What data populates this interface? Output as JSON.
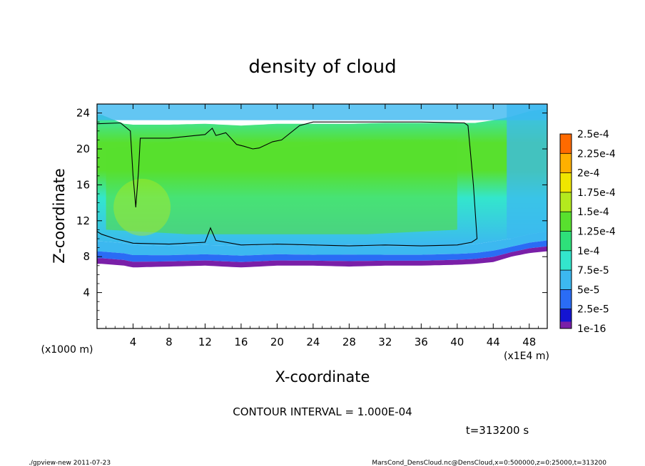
{
  "chart_data": {
    "type": "heatmap",
    "title": "density of cloud",
    "xlabel": "X-coordinate",
    "ylabel": "Z-coordinate",
    "x_unit": "(x1E4 m)",
    "y_unit": "(x1000 m)",
    "xlim": [
      0,
      50
    ],
    "ylim": [
      0,
      25
    ],
    "x_ticks": [
      4,
      8,
      12,
      16,
      20,
      24,
      28,
      32,
      36,
      40,
      44,
      48
    ],
    "y_ticks": [
      4,
      8,
      12,
      16,
      20,
      24
    ],
    "colorbar": {
      "labels": [
        "1e-16",
        "2.5e-5",
        "5e-5",
        "7.5e-5",
        "1e-4",
        "1.25e-4",
        "1.5e-4",
        "1.75e-4",
        "2e-4",
        "2.25e-4",
        "2.5e-4"
      ],
      "colors": [
        "#7a1fa8",
        "#1414d2",
        "#2a6cf5",
        "#3cb8f0",
        "#33e6cc",
        "#2ee07a",
        "#58e02e",
        "#b4ea1e",
        "#f0e600",
        "#ffb000",
        "#ff6a00",
        "#ff2a1a",
        "#ff8080"
      ]
    },
    "cloud_profile": {
      "columns": [
        {
          "x": 0.5,
          "bottom": 7.2,
          "core": 9.7,
          "top": 23.8
        },
        {
          "x": 3,
          "bottom": 7.0,
          "core": 9.5,
          "top": 22.8
        },
        {
          "x": 4,
          "bottom": 6.8,
          "core": 9.3,
          "top": 22.7
        },
        {
          "x": 8,
          "bottom": 6.9,
          "core": 9.2,
          "top": 22.7
        },
        {
          "x": 12,
          "bottom": 7.0,
          "core": 9.3,
          "top": 22.8
        },
        {
          "x": 16,
          "bottom": 6.8,
          "core": 9.2,
          "top": 22.6
        },
        {
          "x": 20,
          "bottom": 7.0,
          "core": 9.3,
          "top": 22.8
        },
        {
          "x": 24,
          "bottom": 7.0,
          "core": 9.2,
          "top": 22.8
        },
        {
          "x": 28,
          "bottom": 6.9,
          "core": 9.3,
          "top": 22.8
        },
        {
          "x": 32,
          "bottom": 7.0,
          "core": 9.2,
          "top": 22.9
        },
        {
          "x": 36,
          "bottom": 7.0,
          "core": 9.2,
          "top": 22.9
        },
        {
          "x": 40,
          "bottom": 7.1,
          "core": 9.3,
          "top": 22.9
        },
        {
          "x": 42,
          "bottom": 7.2,
          "core": 9.4,
          "top": 22.9
        },
        {
          "x": 44,
          "bottom": 7.4,
          "core": 9.7,
          "top": 23.2
        },
        {
          "x": 46,
          "bottom": 8.0,
          "core": 10.0,
          "top": 23.6
        },
        {
          "x": 48,
          "bottom": 8.4,
          "core": 10.5,
          "top": 24.2
        },
        {
          "x": 50,
          "bottom": 8.6,
          "core": 10.8,
          "top": 24.5
        }
      ],
      "contour_1e-4": [
        [
          0,
          22.8
        ],
        [
          2.6,
          22.9
        ],
        [
          3.7,
          22.0
        ],
        [
          4.0,
          17.0
        ],
        [
          4.3,
          13.5
        ],
        [
          4.6,
          17.5
        ],
        [
          4.8,
          21.2
        ],
        [
          8,
          21.2
        ],
        [
          12,
          21.6
        ],
        [
          12.8,
          22.3
        ],
        [
          13.2,
          21.5
        ],
        [
          14.3,
          21.8
        ],
        [
          15.5,
          20.5
        ],
        [
          16.3,
          20.3
        ],
        [
          17.3,
          20.0
        ],
        [
          18,
          20.1
        ],
        [
          19.5,
          20.8
        ],
        [
          20.5,
          21.0
        ],
        [
          22.5,
          22.6
        ],
        [
          24,
          23.0
        ],
        [
          30,
          23.0
        ],
        [
          36,
          23.0
        ],
        [
          40.8,
          22.9
        ],
        [
          41.2,
          22.6
        ],
        [
          41.8,
          16.0
        ],
        [
          42.2,
          10.0
        ],
        [
          41.6,
          9.6
        ],
        [
          40,
          9.3
        ],
        [
          36,
          9.2
        ],
        [
          32,
          9.3
        ],
        [
          28,
          9.2
        ],
        [
          24,
          9.3
        ],
        [
          20,
          9.4
        ],
        [
          16,
          9.3
        ],
        [
          13.2,
          9.8
        ],
        [
          12.6,
          11.2
        ],
        [
          12.0,
          9.6
        ],
        [
          8,
          9.4
        ],
        [
          4,
          9.5
        ],
        [
          2,
          10.0
        ],
        [
          0.5,
          10.5
        ],
        [
          0,
          10.8
        ]
      ]
    }
  },
  "contour_interval": "CONTOUR INTERVAL = 1.000E-04",
  "time_label": "t=313200 s",
  "footer_left": "./gpview-new   2011-07-23",
  "footer_right": "MarsCond_DensCloud.nc@DensCloud,x=0:500000,z=0:25000,t=313200"
}
